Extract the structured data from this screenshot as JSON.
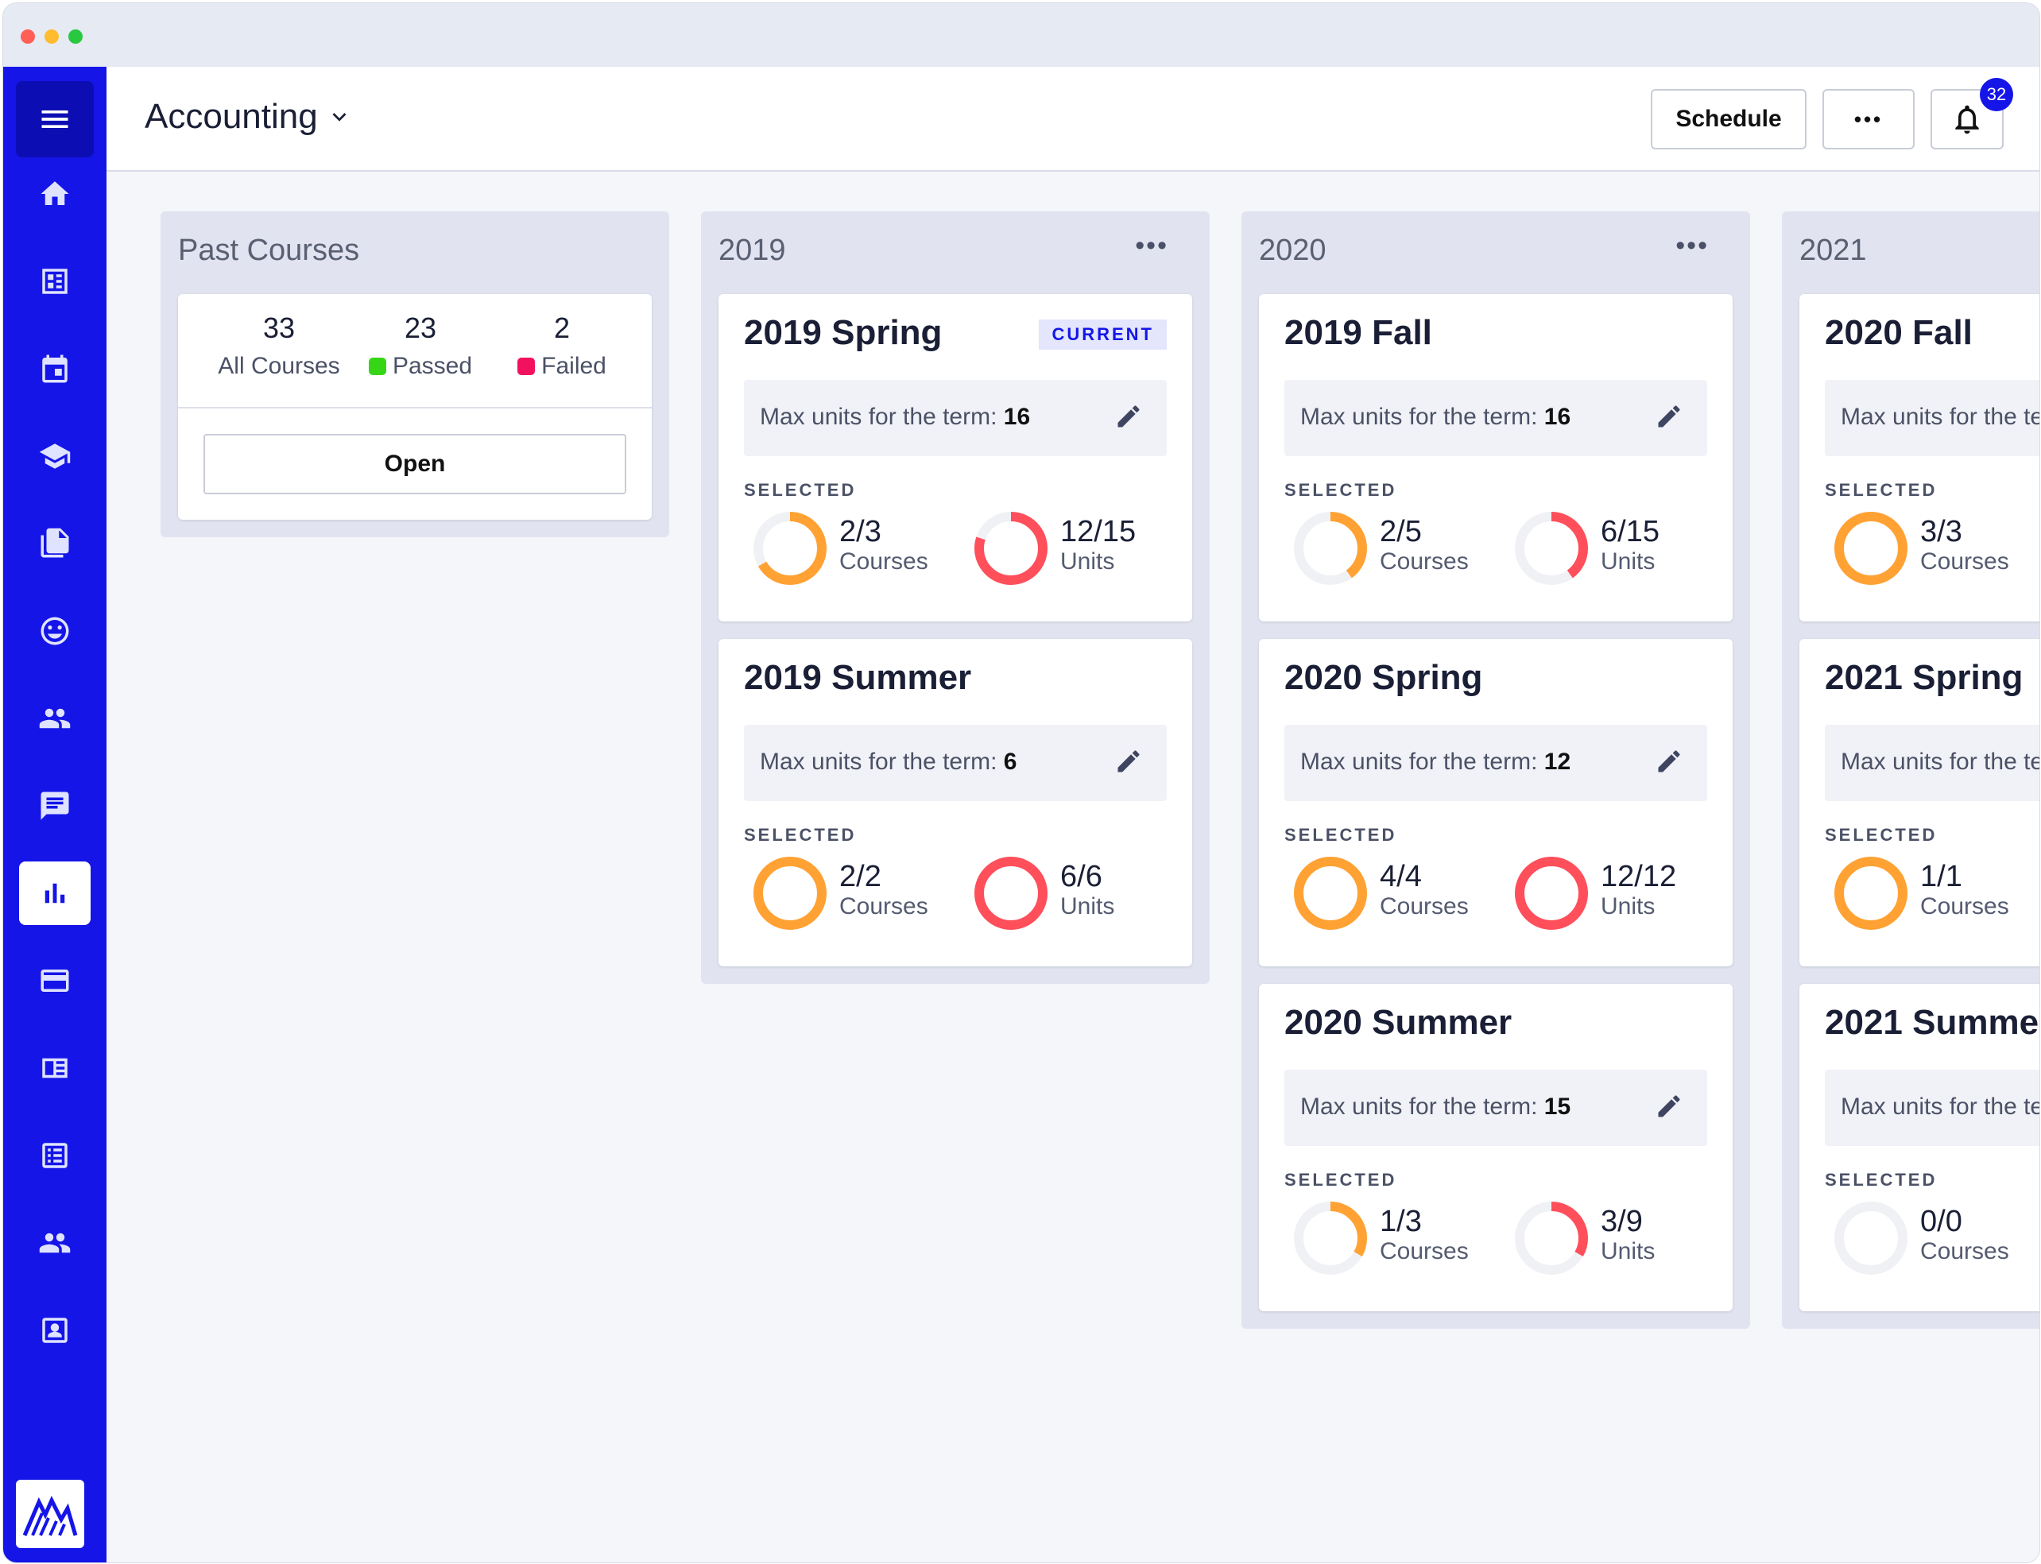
{
  "header": {
    "workspace": "Accounting",
    "schedule_label": "Schedule",
    "more_label": "•••",
    "notification_count": "32"
  },
  "sidebar": {
    "items": [
      {
        "icon": "home-icon"
      },
      {
        "icon": "dashboard-icon"
      },
      {
        "icon": "calendar-icon"
      },
      {
        "icon": "graduation-cap-icon"
      },
      {
        "icon": "documents-icon"
      },
      {
        "icon": "smiley-icon"
      },
      {
        "icon": "people-icon"
      },
      {
        "icon": "chat-icon"
      },
      {
        "icon": "bar-chart-icon",
        "active": true
      },
      {
        "icon": "credit-card-icon"
      },
      {
        "icon": "news-icon"
      },
      {
        "icon": "list-icon"
      },
      {
        "icon": "group-icon"
      },
      {
        "icon": "contact-icon"
      }
    ]
  },
  "colors": {
    "sidebar": "#1515e8",
    "courses_ring": "#ffa233",
    "units_ring": "#ff4f5b",
    "passed": "#36d617",
    "failed": "#f2115f"
  },
  "columns": [
    {
      "title": "Past Courses",
      "past": {
        "all_count": "33",
        "all_label": "All Courses",
        "passed_count": "23",
        "passed_label": "Passed",
        "failed_count": "2",
        "failed_label": "Failed",
        "open_label": "Open"
      }
    },
    {
      "title": "2019",
      "more": "•••",
      "terms": [
        {
          "name": "2019 Spring",
          "badge": "CURRENT",
          "max_label": "Max units for the term: ",
          "max_units": "16",
          "selected_label": "SELECTED",
          "courses": "2/3",
          "courses_label": "Courses",
          "courses_frac": 0.667,
          "units": "12/15",
          "units_label": "Units",
          "units_frac": 0.8
        },
        {
          "name": "2019 Summer",
          "max_label": "Max units for the term: ",
          "max_units": "6",
          "selected_label": "SELECTED",
          "courses": "2/2",
          "courses_label": "Courses",
          "courses_frac": 1,
          "units": "6/6",
          "units_label": "Units",
          "units_frac": 1
        }
      ]
    },
    {
      "title": "2020",
      "more": "•••",
      "terms": [
        {
          "name": "2019 Fall",
          "max_label": "Max units for the term: ",
          "max_units": "16",
          "selected_label": "SELECTED",
          "courses": "2/5",
          "courses_label": "Courses",
          "courses_frac": 0.4,
          "units": "6/15",
          "units_label": "Units",
          "units_frac": 0.4
        },
        {
          "name": "2020 Spring",
          "max_label": "Max units for the term: ",
          "max_units": "12",
          "selected_label": "SELECTED",
          "courses": "4/4",
          "courses_label": "Courses",
          "courses_frac": 1,
          "units": "12/12",
          "units_label": "Units",
          "units_frac": 1
        },
        {
          "name": "2020 Summer",
          "max_label": "Max units for the term: ",
          "max_units": "15",
          "selected_label": "SELECTED",
          "courses": "1/3",
          "courses_label": "Courses",
          "courses_frac": 0.333,
          "units": "3/9",
          "units_label": "Units",
          "units_frac": 0.333
        }
      ]
    },
    {
      "title": "2021",
      "terms": [
        {
          "name": "2020 Fall",
          "max_label": "Max units for the te",
          "selected_label": "SELECTED",
          "courses": "3/3",
          "courses_label": "Courses",
          "courses_frac": 1
        },
        {
          "name": "2021 Spring",
          "max_label": "Max units for the te",
          "selected_label": "SELECTED",
          "courses": "1/1",
          "courses_label": "Courses",
          "courses_frac": 1
        },
        {
          "name": "2021 Summe",
          "max_label": "Max units for the te",
          "selected_label": "SELECTED",
          "courses": "0/0",
          "courses_label": "Courses",
          "courses_frac": 0
        }
      ]
    }
  ]
}
